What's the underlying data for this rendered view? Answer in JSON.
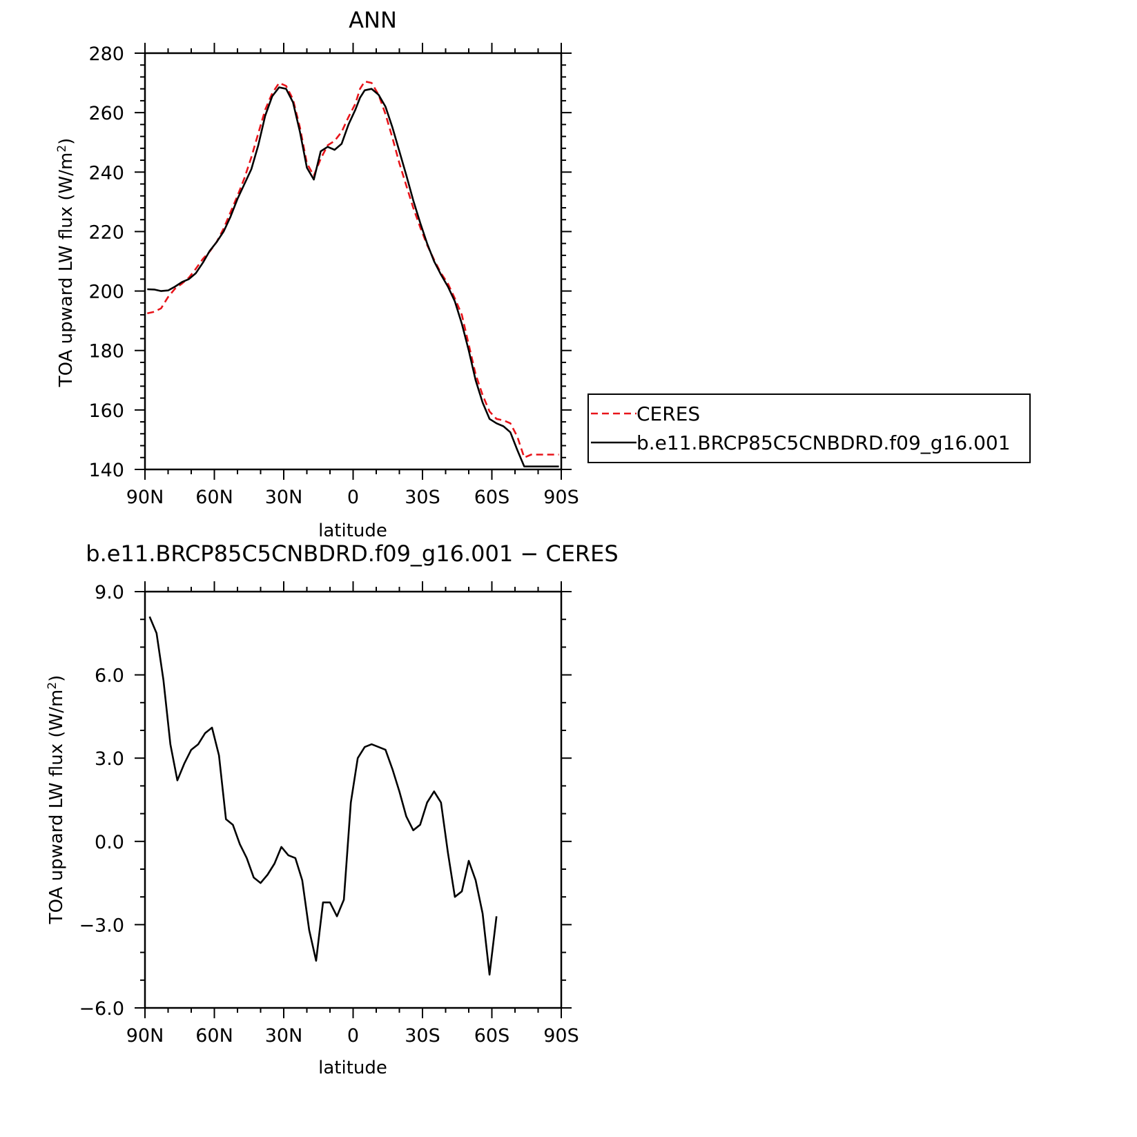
{
  "figure": {
    "background": "#ffffff"
  },
  "chart_data": [
    {
      "type": "line",
      "title": "ANN",
      "xlabel": "latitude",
      "ylabel": "TOA upward LW flux (W/m",
      "ylabel_sup": "2",
      "ylabel_close": ")",
      "xlim": [
        90,
        -90
      ],
      "ylim": [
        140,
        280
      ],
      "xticks": [
        90,
        60,
        30,
        0,
        -30,
        -60,
        -90
      ],
      "xtick_labels": [
        "90N",
        "60N",
        "30N",
        "0",
        "30S",
        "60S",
        "90S"
      ],
      "yticks": [
        140,
        160,
        180,
        200,
        220,
        240,
        260,
        280
      ],
      "ytick_labels": [
        "140",
        "160",
        "180",
        "200",
        "220",
        "240",
        "260",
        "280"
      ],
      "grid": false,
      "legend_position": "right",
      "x": [
        89,
        86,
        83,
        80,
        77,
        74,
        71,
        68,
        65,
        62,
        59,
        56,
        53,
        50,
        47,
        44,
        41,
        38,
        35,
        32,
        29,
        26,
        23,
        20,
        17,
        14,
        11,
        8,
        5,
        2,
        -1,
        -3,
        -5,
        -8,
        -11,
        -14,
        -17,
        -20,
        -23,
        -26,
        -29,
        -32,
        -35,
        -38,
        -41,
        -44,
        -47,
        -50,
        -53,
        -56,
        -59,
        -62,
        -65,
        -68,
        -71,
        -74,
        -77,
        -80,
        -83,
        -86,
        -89
      ],
      "series": [
        {
          "name": "CERES",
          "color": "#e8141a",
          "dash": true,
          "values": [
            192.5,
            193.0,
            194.2,
            198.0,
            200.8,
            202.5,
            204.5,
            207.5,
            210.8,
            213.3,
            216.5,
            221.0,
            226.5,
            232.0,
            238.0,
            245.0,
            253.0,
            261.0,
            266.5,
            270.0,
            269.0,
            264.5,
            255.0,
            243.0,
            238.8,
            244.5,
            249.0,
            250.5,
            253.5,
            258.5,
            263.0,
            268.0,
            270.5,
            270.0,
            266.0,
            259.5,
            251.5,
            243.0,
            235.5,
            228.0,
            221.5,
            215.5,
            210.5,
            206.0,
            202.5,
            197.5,
            192.0,
            182.0,
            172.0,
            165.0,
            159.5,
            157.0,
            156.5,
            155.5,
            151.0,
            144.0,
            145.0,
            145.0,
            145.0,
            145.0,
            145.0
          ]
        },
        {
          "name": "b.e11.BRCP85C5CNBDRD.f09_g16.001",
          "color": "#000000",
          "dash": false,
          "values": [
            200.6,
            200.5,
            200.0,
            200.2,
            201.5,
            203.0,
            204.0,
            206.0,
            209.5,
            213.5,
            216.5,
            220.0,
            225.0,
            231.0,
            236.0,
            241.0,
            249.0,
            259.0,
            265.5,
            268.5,
            268.0,
            263.5,
            253.5,
            241.5,
            237.5,
            247.0,
            248.5,
            247.5,
            249.5,
            256.0,
            261.0,
            265.0,
            267.5,
            268.0,
            266.0,
            262.0,
            255.0,
            247.0,
            239.0,
            230.5,
            223.0,
            216.0,
            210.0,
            205.5,
            201.5,
            196.5,
            189.0,
            180.0,
            170.0,
            162.5,
            157.0,
            155.5,
            154.5,
            152.5,
            146.5,
            141.0,
            141.0,
            141.0,
            141.0,
            141.0,
            141.0
          ]
        }
      ]
    },
    {
      "type": "line",
      "title": "b.e11.BRCP85C5CNBDRD.f09_g16.001 − CERES",
      "xlabel": "latitude",
      "ylabel": "TOA upward LW flux (W/m",
      "ylabel_sup": "2",
      "ylabel_close": ")",
      "xlim": [
        90,
        -90
      ],
      "ylim": [
        -6,
        9
      ],
      "xticks": [
        90,
        60,
        30,
        0,
        -30,
        -60,
        -90
      ],
      "xtick_labels": [
        "90N",
        "60N",
        "30N",
        "0",
        "30S",
        "60S",
        "90S"
      ],
      "yticks": [
        -6,
        -3,
        0,
        3,
        6,
        9
      ],
      "ytick_labels": [
        "−6.0",
        "−3.0",
        "0.0",
        "3.0",
        "6.0",
        "9.0"
      ],
      "grid": false,
      "series": [
        {
          "color": "#000000",
          "dash": false,
          "values": [
            8.1,
            7.5,
            5.8,
            3.5,
            2.2,
            2.8,
            3.3,
            3.5,
            3.9,
            4.1,
            3.1,
            0.8,
            0.6,
            -0.1,
            -0.6,
            -1.3,
            -1.5,
            -1.2,
            -0.8,
            -0.2,
            -0.5,
            -0.6,
            -1.4,
            -3.2,
            -4.3,
            -2.2,
            -2.2,
            -2.7,
            -2.1,
            1.4,
            3.0,
            3.4,
            3.5,
            3.4,
            3.3,
            2.6,
            1.8,
            0.9,
            0.4,
            0.6,
            1.4,
            1.8,
            1.4,
            -0.4,
            -2.0,
            -1.8,
            -0.7,
            -1.4,
            -2.6,
            -4.8,
            -2.7
          ]
        }
      ],
      "x": [
        88,
        85,
        82,
        79,
        76,
        73,
        70,
        67,
        64,
        61,
        58,
        55,
        52,
        49,
        46,
        43,
        40,
        37,
        34,
        31,
        28,
        25,
        22,
        19,
        16,
        13,
        10,
        7,
        4,
        1,
        -2,
        -5,
        -8,
        -11,
        -14,
        -17,
        -20,
        -23,
        -26,
        -29,
        -32,
        -35,
        -38,
        -41,
        -44,
        -47,
        -50,
        -53,
        -56,
        -59,
        -62
      ]
    }
  ]
}
